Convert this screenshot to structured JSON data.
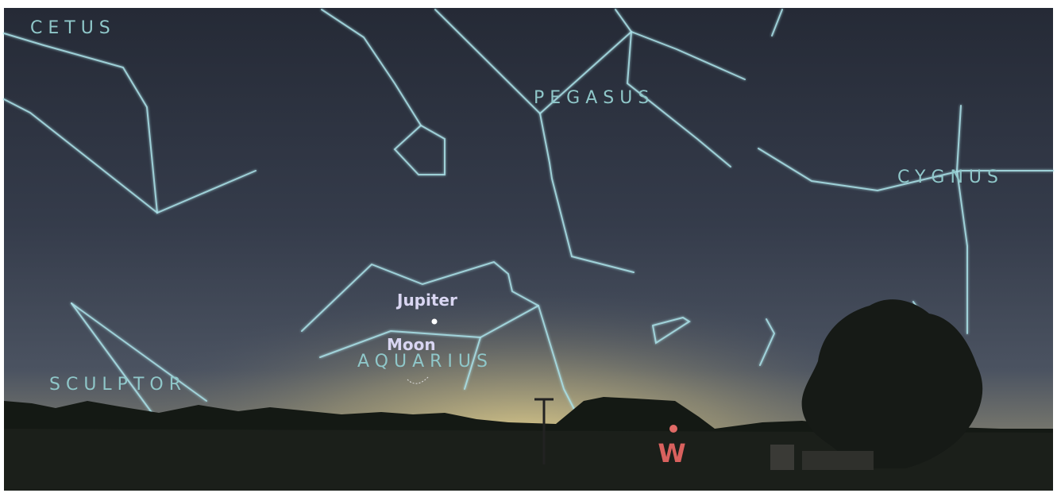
{
  "constellations": [
    "CETUS",
    "PEGASUS",
    "CYGNUS",
    "SCULPTOR",
    "AQUARIUS"
  ],
  "objects": [
    "Jupiter",
    "Moon"
  ],
  "compass": "W"
}
